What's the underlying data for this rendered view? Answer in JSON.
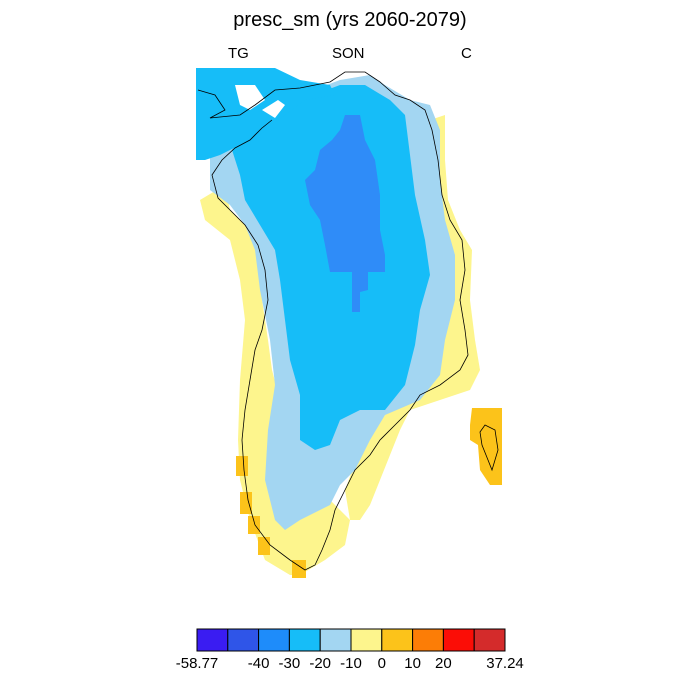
{
  "title": "presc_sm (yrs 2060-2079)",
  "subtitle_left": "TG",
  "subtitle_center": "SON",
  "subtitle_right": "C",
  "colorbar": {
    "colors": [
      "#3a1cf2",
      "#2f55e8",
      "#1e8cfa",
      "#16bdf8",
      "#a3d6f2",
      "#fdf58d",
      "#fcc31a",
      "#fc7d06",
      "#fb0d06",
      "#d42b2b"
    ],
    "labels": [
      "-58.77",
      "-40",
      "-30",
      "-20",
      "-10",
      "0",
      "10",
      "20",
      "37.24"
    ]
  },
  "legend_classes": {
    "lt_minus30": "#2f8cf8",
    "minus30_to_minus20": "#16bdf8",
    "minus20_to_minus10": "#16bdf8",
    "minus10_to_0": "#a3d6f2",
    "zero_to_10": "#fdf58d",
    "ten_to_20": "#fcc31a"
  }
}
